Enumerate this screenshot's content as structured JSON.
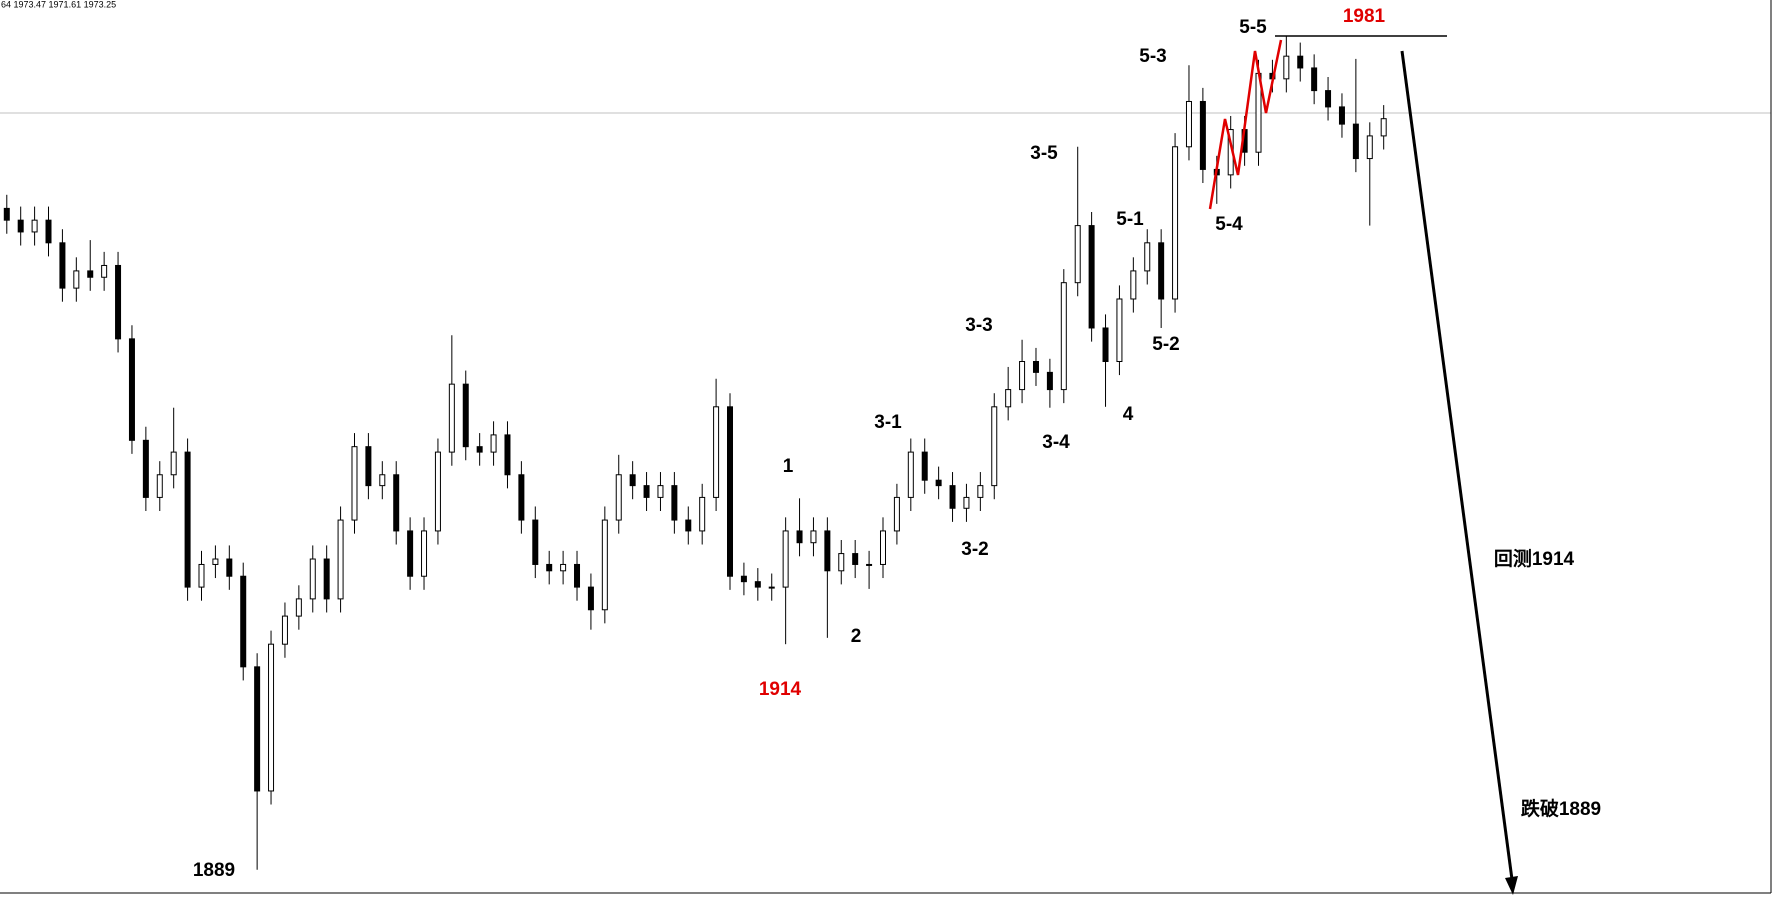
{
  "chart_data": {
    "type": "candlestick",
    "header": "64 1973.47 1971.61 1973.25",
    "ylim": [
      1887.1,
      1985
    ],
    "up_color": "#ffffff",
    "down_color": "#000000",
    "open": [
      1962.0,
      1960.7,
      1959.4,
      1960.7,
      1958.2,
      1953.2,
      1955.1,
      1954.4,
      1955.7,
      1947.6,
      1936.4,
      1930.1,
      1932.6,
      1935.1,
      1920.2,
      1922.7,
      1923.3,
      1921.4,
      1911.4,
      1897.7,
      1913.9,
      1917.0,
      1918.9,
      1923.3,
      1918.9,
      1927.6,
      1935.7,
      1931.4,
      1932.6,
      1926.4,
      1921.4,
      1926.4,
      1935.1,
      1942.6,
      1935.7,
      1935.1,
      1937.0,
      1932.6,
      1927.6,
      1922.7,
      1922.0,
      1922.7,
      1920.2,
      1917.7,
      1927.6,
      1932.6,
      1931.4,
      1930.1,
      1931.4,
      1927.6,
      1926.4,
      1930.1,
      1940.1,
      1921.4,
      1920.8,
      1920.2,
      1920.2,
      1926.4,
      1925.1,
      1926.4,
      1922.0,
      1923.9,
      1922.7,
      1922.7,
      1926.4,
      1930.1,
      1935.1,
      1932.0,
      1931.4,
      1928.9,
      1930.1,
      1931.4,
      1940.1,
      1942.0,
      1945.1,
      1943.9,
      1942.0,
      1953.8,
      1960.1,
      1948.8,
      1945.1,
      1952.0,
      1955.1,
      1958.2,
      1952.0,
      1968.8,
      1973.8,
      1966.3,
      1965.7,
      1970.7,
      1968.2,
      1976.9,
      1976.3,
      1978.8,
      1977.5,
      1975.0,
      1973.2,
      1971.3,
      1967.5,
      1970.0
    ],
    "high": [
      1963.5,
      1962.2,
      1962.2,
      1962.2,
      1959.7,
      1956.6,
      1958.5,
      1957.2,
      1957.2,
      1949.1,
      1937.9,
      1934.1,
      1940.0,
      1936.6,
      1924.2,
      1924.8,
      1924.8,
      1922.9,
      1912.9,
      1915.4,
      1918.5,
      1920.4,
      1924.8,
      1924.8,
      1929.1,
      1937.2,
      1937.2,
      1934.1,
      1934.1,
      1927.9,
      1927.9,
      1936.6,
      1948.0,
      1944.1,
      1937.2,
      1938.5,
      1938.5,
      1934.1,
      1929.1,
      1924.2,
      1924.2,
      1924.2,
      1921.7,
      1929.1,
      1934.8,
      1934.1,
      1932.9,
      1932.9,
      1932.9,
      1929.1,
      1931.6,
      1943.2,
      1941.6,
      1922.9,
      1922.3,
      1921.7,
      1927.9,
      1930.0,
      1927.9,
      1927.9,
      1925.4,
      1925.4,
      1924.2,
      1927.9,
      1931.6,
      1936.6,
      1936.6,
      1933.5,
      1932.9,
      1931.6,
      1932.9,
      1941.6,
      1944.5,
      1947.5,
      1946.6,
      1945.4,
      1955.3,
      1968.8,
      1961.6,
      1950.3,
      1953.5,
      1956.6,
      1959.7,
      1959.7,
      1970.3,
      1977.8,
      1975.3,
      1967.8,
      1972.2,
      1972.2,
      1978.4,
      1978.4,
      1981.0,
      1980.3,
      1979.0,
      1976.5,
      1974.7,
      1978.5,
      1971.5,
      1973.4
    ],
    "low": [
      1959.2,
      1957.9,
      1957.9,
      1956.7,
      1951.7,
      1951.7,
      1952.9,
      1952.9,
      1946.1,
      1934.9,
      1928.6,
      1928.6,
      1931.1,
      1918.7,
      1918.7,
      1921.2,
      1919.9,
      1909.9,
      1889.0,
      1896.2,
      1912.4,
      1915.5,
      1917.4,
      1917.4,
      1917.4,
      1926.1,
      1929.9,
      1929.9,
      1924.9,
      1919.9,
      1919.9,
      1924.9,
      1933.6,
      1934.2,
      1933.6,
      1933.6,
      1931.1,
      1926.1,
      1921.2,
      1920.5,
      1920.5,
      1918.7,
      1915.5,
      1916.2,
      1926.1,
      1929.9,
      1928.6,
      1928.6,
      1926.1,
      1924.9,
      1924.9,
      1928.6,
      1919.9,
      1919.3,
      1918.7,
      1918.7,
      1913.9,
      1923.6,
      1923.6,
      1914.6,
      1920.5,
      1921.2,
      1920.0,
      1921.2,
      1924.9,
      1928.6,
      1930.5,
      1929.9,
      1927.4,
      1927.4,
      1928.6,
      1929.9,
      1938.6,
      1940.5,
      1942.4,
      1940.0,
      1940.5,
      1952.3,
      1947.3,
      1940.1,
      1943.6,
      1950.5,
      1953.6,
      1948.8,
      1950.5,
      1967.3,
      1964.8,
      1962.5,
      1964.2,
      1966.7,
      1966.7,
      1974.8,
      1974.8,
      1976.0,
      1973.5,
      1971.7,
      1969.8,
      1966.0,
      1960.1,
      1968.5
    ],
    "close": [
      1960.7,
      1959.4,
      1960.7,
      1958.2,
      1953.2,
      1955.1,
      1954.4,
      1955.7,
      1947.6,
      1936.4,
      1930.1,
      1932.6,
      1935.1,
      1920.2,
      1922.7,
      1923.3,
      1921.4,
      1911.4,
      1897.7,
      1913.9,
      1917.0,
      1918.9,
      1923.3,
      1918.9,
      1927.6,
      1935.7,
      1931.4,
      1932.6,
      1926.4,
      1921.4,
      1926.4,
      1935.1,
      1942.6,
      1935.7,
      1935.1,
      1937.0,
      1932.6,
      1927.6,
      1922.7,
      1922.0,
      1922.7,
      1920.2,
      1917.7,
      1927.6,
      1932.6,
      1931.4,
      1930.1,
      1931.4,
      1927.6,
      1926.4,
      1930.1,
      1940.1,
      1921.4,
      1920.8,
      1920.2,
      1920.2,
      1926.4,
      1925.1,
      1926.4,
      1922.0,
      1923.9,
      1922.7,
      1922.7,
      1926.4,
      1930.1,
      1935.1,
      1932.0,
      1931.4,
      1928.9,
      1930.1,
      1931.4,
      1940.1,
      1942.0,
      1945.1,
      1943.9,
      1942.0,
      1953.8,
      1960.1,
      1948.8,
      1945.1,
      1952.0,
      1955.1,
      1958.2,
      1952.0,
      1968.8,
      1973.8,
      1966.3,
      1965.7,
      1970.7,
      1968.2,
      1976.9,
      1976.3,
      1978.8,
      1977.5,
      1975.0,
      1973.2,
      1971.3,
      1967.5,
      1970.0,
      1971.9
    ],
    "annotations": [
      {
        "text": "1889",
        "color": "#000000"
      },
      {
        "text": "1914",
        "color": "#e00000"
      },
      {
        "text": "1",
        "color": "#000000"
      },
      {
        "text": "2",
        "color": "#000000"
      },
      {
        "text": "3-1",
        "color": "#000000"
      },
      {
        "text": "3-2",
        "color": "#000000"
      },
      {
        "text": "3-3",
        "color": "#000000"
      },
      {
        "text": "3-4",
        "color": "#000000"
      },
      {
        "text": "3-5",
        "color": "#000000"
      },
      {
        "text": "4",
        "color": "#000000"
      },
      {
        "text": "5-1",
        "color": "#000000"
      },
      {
        "text": "5-2",
        "color": "#000000"
      },
      {
        "text": "5-3",
        "color": "#000000"
      },
      {
        "text": "5-4",
        "color": "#000000"
      },
      {
        "text": "5-5",
        "color": "#000000"
      },
      {
        "text": "1981",
        "color": "#e00000"
      },
      {
        "text": "回测1914",
        "color": "#000000"
      },
      {
        "text": "跌破1889",
        "color": "#000000"
      }
    ]
  }
}
